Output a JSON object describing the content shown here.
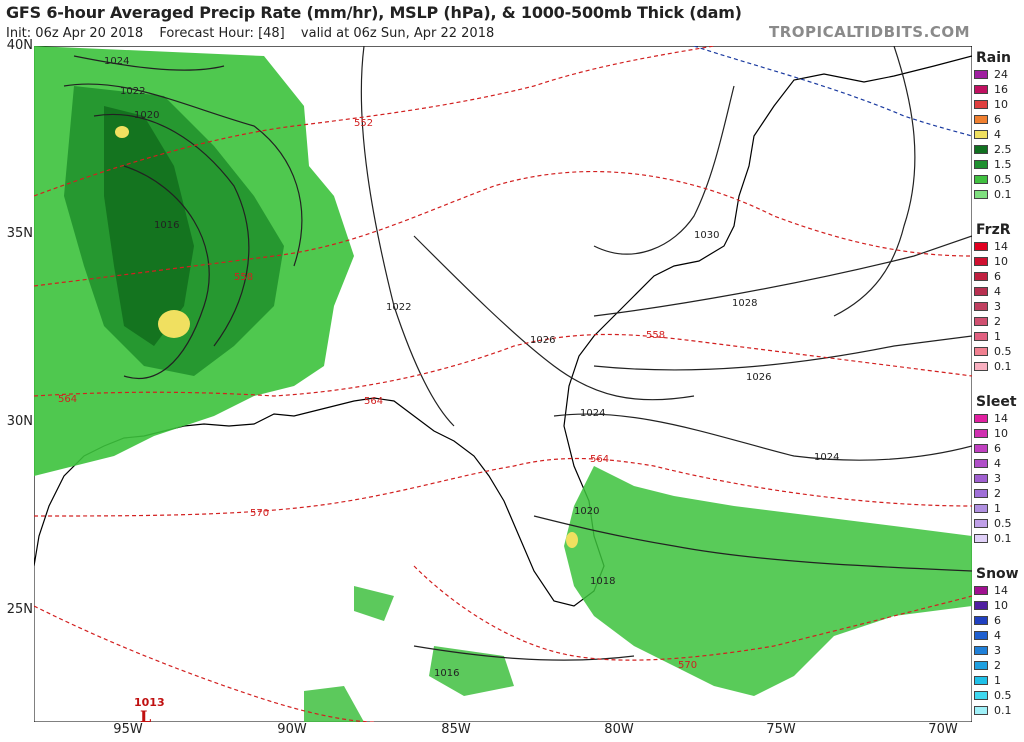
{
  "header": {
    "title": "GFS 6-hour Averaged Precip Rate (mm/hr), MSLP (hPa), & 1000-500mb Thick (dam)",
    "init": "Init: 06z Apr 20 2018",
    "forecast_hour": "Forecast Hour: [48]",
    "valid": "valid at 06z Sun, Apr 22 2018",
    "brand": "TROPICALTIDBITS.COM"
  },
  "latitudes": [
    "40N",
    "35N",
    "30N",
    "25N"
  ],
  "longitudes": [
    "95W",
    "90W",
    "85W",
    "80W",
    "75W",
    "70W"
  ],
  "isobar_labels": [
    "1024",
    "1022",
    "1020",
    "1016",
    "1022",
    "1026",
    "1030",
    "1028",
    "1026",
    "1024",
    "1024",
    "1020",
    "1018",
    "1016"
  ],
  "thickness_labels": [
    "552",
    "558",
    "558",
    "564",
    "564",
    "564",
    "570",
    "570"
  ],
  "low_center": {
    "pressure": "1013",
    "symbol": "L"
  },
  "legend": {
    "rain": {
      "title": "Rain",
      "labels": [
        "24",
        "16",
        "10",
        "6",
        "4",
        "2.5",
        "1.5",
        "0.5",
        "0.1"
      ],
      "colors": [
        "#a020a0",
        "#c01060",
        "#e04040",
        "#f08030",
        "#f0e060",
        "#107020",
        "#209030",
        "#40c040",
        "#80e080"
      ]
    },
    "frzr": {
      "title": "FrzR",
      "labels": [
        "14",
        "10",
        "6",
        "4",
        "3",
        "2",
        "1",
        "0.5",
        "0.1"
      ],
      "colors": [
        "#e00020",
        "#d01030",
        "#c02040",
        "#b83050",
        "#c04060",
        "#d05070",
        "#e06080",
        "#f08090",
        "#f8b0c0"
      ]
    },
    "sleet": {
      "title": "Sleet",
      "labels": [
        "14",
        "10",
        "6",
        "4",
        "3",
        "2",
        "1",
        "0.5",
        "0.1"
      ],
      "colors": [
        "#e020a0",
        "#d030b0",
        "#c040c0",
        "#b050c8",
        "#a060d0",
        "#a070d8",
        "#b090e0",
        "#c0a0e8",
        "#e0d0f8"
      ]
    },
    "snow": {
      "title": "Snow",
      "labels": [
        "14",
        "10",
        "6",
        "4",
        "3",
        "2",
        "1",
        "0.5",
        "0.1"
      ],
      "colors": [
        "#a01090",
        "#5020a0",
        "#2040c0",
        "#2060d0",
        "#2080d8",
        "#20a0e0",
        "#20c0e8",
        "#40d8f0",
        "#a0f0f8"
      ]
    }
  }
}
